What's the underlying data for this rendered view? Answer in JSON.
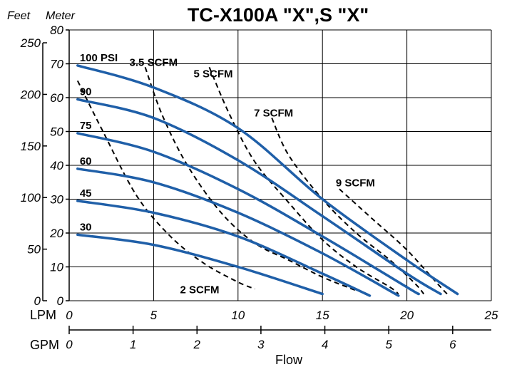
{
  "chart_data": {
    "type": "line",
    "title": "TC-X100A \"X\",S \"X\"",
    "y_unit_left": "Feet",
    "y_unit_right": "Meter",
    "x_axis_name": "Flow",
    "x_primary_unit": "LPM",
    "x_secondary_unit": "GPM",
    "xlim_lpm": [
      0,
      25
    ],
    "ylim_meter": [
      0,
      80
    ],
    "lpm_ticks": [
      "0",
      "5",
      "10",
      "15",
      "20",
      "25"
    ],
    "gpm_ticks": [
      "0",
      "1",
      "2",
      "3",
      "4",
      "5",
      "6"
    ],
    "meter_ticks": [
      "0",
      "10",
      "20",
      "30",
      "40",
      "50",
      "60",
      "70",
      "80"
    ],
    "feet_ticks": [
      "0",
      "50",
      "100",
      "150",
      "200",
      "250"
    ],
    "grid": true,
    "pressure_series": [
      {
        "name": "100 PSI",
        "points": [
          [
            0.5,
            69.5
          ],
          [
            5,
            63
          ],
          [
            10,
            51
          ],
          [
            15,
            30
          ],
          [
            20,
            12
          ],
          [
            23,
            2
          ]
        ]
      },
      {
        "name": "90",
        "points": [
          [
            0.5,
            59.5
          ],
          [
            5,
            54
          ],
          [
            10,
            41.5
          ],
          [
            15,
            25
          ],
          [
            20,
            8
          ],
          [
            22,
            2
          ]
        ]
      },
      {
        "name": "75",
        "points": [
          [
            0.5,
            49.5
          ],
          [
            5,
            44
          ],
          [
            10,
            33
          ],
          [
            15,
            19
          ],
          [
            20,
            4
          ],
          [
            20.7,
            2
          ]
        ]
      },
      {
        "name": "60",
        "points": [
          [
            0.5,
            39
          ],
          [
            5,
            35
          ],
          [
            10,
            26
          ],
          [
            15,
            14
          ],
          [
            19.5,
            1.5
          ]
        ]
      },
      {
        "name": "45",
        "points": [
          [
            0.5,
            29.5
          ],
          [
            5,
            26
          ],
          [
            10,
            19
          ],
          [
            15,
            8
          ],
          [
            17.8,
            1.5
          ]
        ]
      },
      {
        "name": "30",
        "points": [
          [
            0.5,
            19.5
          ],
          [
            5,
            16.5
          ],
          [
            10,
            10
          ],
          [
            15,
            2
          ]
        ]
      }
    ],
    "air_consumption_series": [
      {
        "name": "2 SCFM",
        "points": [
          [
            0.5,
            65
          ],
          [
            2,
            50
          ],
          [
            4,
            31
          ],
          [
            6,
            19
          ],
          [
            8,
            11
          ],
          [
            10,
            5.5
          ],
          [
            11,
            3.5
          ]
        ]
      },
      {
        "name": "3.5 SCFM",
        "points": [
          [
            4.5,
            69
          ],
          [
            5.5,
            55
          ],
          [
            7,
            40
          ],
          [
            9,
            26
          ],
          [
            11,
            17
          ],
          [
            13,
            12
          ],
          [
            15,
            7
          ],
          [
            17,
            3
          ]
        ]
      },
      {
        "name": "5 SCFM",
        "points": [
          [
            8.3,
            69
          ],
          [
            9.5,
            55
          ],
          [
            11,
            41
          ],
          [
            13,
            29
          ],
          [
            15,
            18
          ],
          [
            17,
            10
          ],
          [
            19,
            4
          ],
          [
            19.5,
            2
          ]
        ]
      },
      {
        "name": "7 SCFM",
        "points": [
          [
            12,
            54
          ],
          [
            13,
            43
          ],
          [
            15,
            30
          ],
          [
            17,
            20
          ],
          [
            19,
            12
          ],
          [
            20.5,
            5
          ],
          [
            21,
            2
          ]
        ]
      },
      {
        "name": "9 SCFM",
        "points": [
          [
            16,
            33
          ],
          [
            18,
            24
          ],
          [
            20,
            15
          ],
          [
            22,
            4
          ],
          [
            22.5,
            1.5
          ]
        ]
      }
    ]
  }
}
